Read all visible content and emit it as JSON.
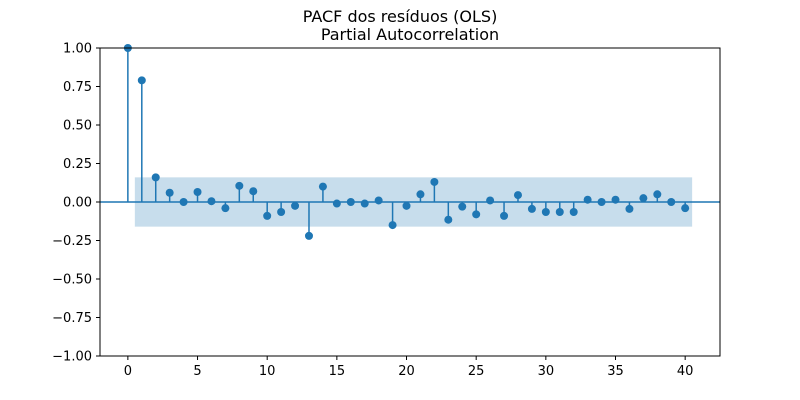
{
  "chart_data": {
    "type": "stem",
    "suptitle": "PACF dos resíduos (OLS)",
    "title": "Partial Autocorrelation",
    "xlabel": "",
    "ylabel": "",
    "xlim": [
      -2,
      42.5
    ],
    "ylim": [
      -1.0,
      1.0
    ],
    "xticks": [
      0,
      5,
      10,
      15,
      20,
      25,
      30,
      35,
      40
    ],
    "yticks": [
      -1.0,
      -0.75,
      -0.5,
      -0.25,
      0.0,
      0.25,
      0.5,
      0.75,
      1.0
    ],
    "ytick_labels": [
      "−1.00",
      "−0.75",
      "−0.50",
      "−0.25",
      "0.00",
      "0.25",
      "0.50",
      "0.75",
      "1.00"
    ],
    "confidence_band": {
      "x_start": 0.5,
      "x_end": 40.5,
      "lower": -0.16,
      "upper": 0.16
    },
    "series": [
      {
        "lags": [
          0,
          1,
          2,
          3,
          4,
          5,
          6,
          7,
          8,
          9,
          10,
          11,
          12,
          13,
          14,
          15,
          16,
          17,
          18,
          19,
          20,
          21,
          22,
          23,
          24,
          25,
          26,
          27,
          28,
          29,
          30,
          31,
          32,
          33,
          34,
          35,
          36,
          37,
          38,
          39,
          40
        ],
        "values": [
          1.0,
          0.79,
          0.16,
          0.06,
          0.0,
          0.065,
          0.005,
          -0.04,
          0.105,
          0.07,
          -0.09,
          -0.065,
          -0.025,
          -0.22,
          0.1,
          -0.01,
          0.0,
          -0.01,
          0.01,
          -0.15,
          -0.025,
          0.05,
          0.13,
          -0.115,
          -0.03,
          -0.08,
          0.01,
          -0.09,
          0.045,
          -0.045,
          -0.065,
          -0.065,
          -0.065,
          0.015,
          0.0,
          0.015,
          -0.045,
          0.025,
          0.05,
          0.0,
          -0.04
        ]
      }
    ],
    "grid": false,
    "colors": {
      "marker": "#1f77b4",
      "band": "#1f77b4",
      "axes": "#000000"
    }
  }
}
